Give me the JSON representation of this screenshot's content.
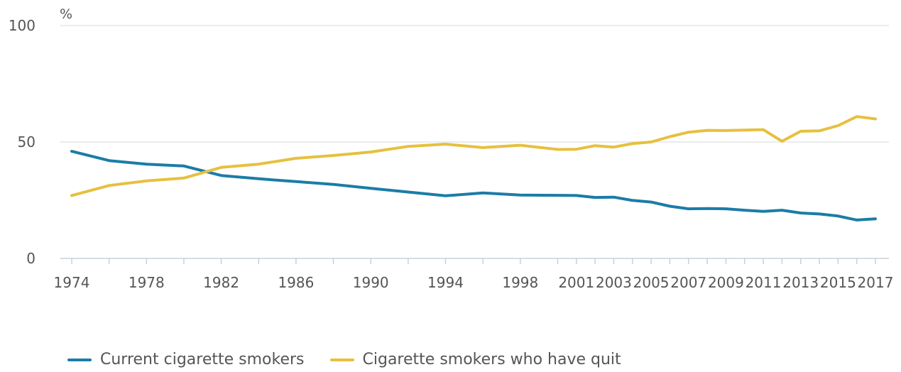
{
  "chart_data": {
    "type": "line",
    "unit_label": "%",
    "ylim": [
      0,
      100
    ],
    "y_ticks": [
      0,
      50,
      100
    ],
    "x_ticks": [
      1974,
      1978,
      1982,
      1986,
      1990,
      1994,
      1998,
      2001,
      2003,
      2005,
      2007,
      2009,
      2011,
      2013,
      2015,
      2017
    ],
    "grid": true,
    "legend_position": "bottom-left",
    "x": [
      1974,
      1976,
      1978,
      1980,
      1982,
      1984,
      1986,
      1988,
      1990,
      1992,
      1994,
      1996,
      1998,
      2000,
      2001,
      2002,
      2003,
      2004,
      2005,
      2006,
      2007,
      2008,
      2009,
      2010,
      2011,
      2012,
      2013,
      2014,
      2015,
      2016,
      2017
    ],
    "series": [
      {
        "name": "Current cigarette smokers",
        "color": "#1b7ca7",
        "values": [
          46,
          42,
          40.5,
          39.7,
          35.6,
          34.2,
          33,
          31.8,
          30.1,
          28.5,
          26.9,
          28.1,
          27.2,
          27.1,
          27.0,
          26.2,
          26.3,
          24.9,
          24.2,
          22.4,
          21.3,
          21.4,
          21.3,
          20.7,
          20.2,
          20.7,
          19.5,
          19.1,
          18.2,
          16.5,
          17.0
        ]
      },
      {
        "name": "Cigarette smokers who have quit",
        "color": "#e6c03f",
        "values": [
          27,
          31.3,
          33.3,
          34.5,
          39.1,
          40.5,
          43,
          44.2,
          45.7,
          48.1,
          49.1,
          47.6,
          48.6,
          46.8,
          46.9,
          48.4,
          47.8,
          49.3,
          50.0,
          52.3,
          54.2,
          55.0,
          54.9,
          55.1,
          55.3,
          50.3,
          54.6,
          54.8,
          57.0,
          60.9,
          59.9
        ]
      }
    ]
  }
}
